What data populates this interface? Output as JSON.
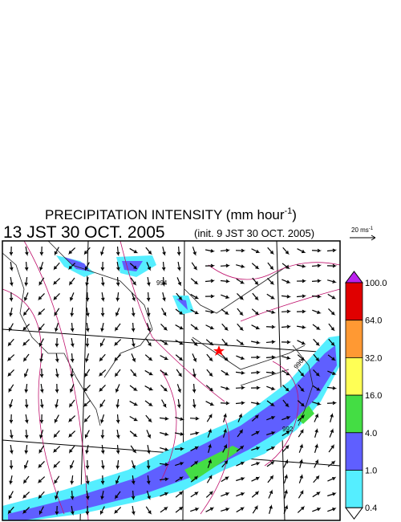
{
  "title": {
    "main": "PRECIPITATION INTENSITY (mm hour",
    "superscript": "-1",
    "close": ")"
  },
  "valid_time": "13 JST 30 OCT. 2005",
  "init_time": "(init. 9 JST 30 OCT. 2005)",
  "vector_scale": {
    "label": "20 ms",
    "superscript": "-1"
  },
  "colorbar": {
    "labels": [
      "100.0",
      "64.0",
      "32.0",
      "16.0",
      "4.0",
      "1.0",
      "0.4"
    ],
    "colors": [
      "#e00000",
      "#ff9933",
      "#ffff55",
      "#44dd44",
      "#5f5fff",
      "#55eeff"
    ],
    "over_color": "#bb22ee",
    "under_color": "#ffffff"
  },
  "contour_labels": [
    "994",
    "996",
    "992"
  ]
}
